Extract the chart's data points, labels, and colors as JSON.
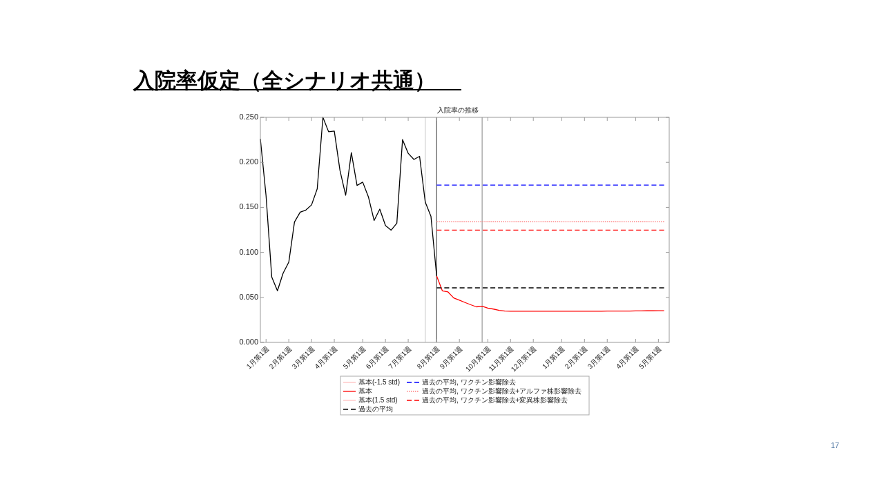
{
  "chart_data": {
    "type": "line",
    "title": "入院率仮定（全シナリオ共通）",
    "subtitle": "入院率の推移",
    "categories": [
      null,
      "1月第1週",
      null,
      null,
      null,
      "2月第1週",
      null,
      null,
      null,
      "3月第1週",
      null,
      null,
      null,
      "4月第1週",
      null,
      null,
      null,
      null,
      "5月第1週",
      null,
      null,
      null,
      "6月第1週",
      null,
      null,
      null,
      "7月第1週",
      null,
      null,
      null,
      null,
      "8月第1週",
      null,
      null,
      null,
      "9月第1週",
      null,
      null,
      null,
      null,
      "10月第1週",
      null,
      null,
      null,
      "11月第1週",
      null,
      null,
      null,
      "12月第1週",
      null,
      null,
      null,
      null,
      "1月第1週",
      null,
      null,
      null,
      "2月第1週",
      null,
      null,
      null,
      "3月第1週",
      null,
      null,
      null,
      null,
      "4月第1週",
      null,
      null,
      null,
      "5月第1週",
      null
    ],
    "ylim": [
      0,
      0.25
    ],
    "yticks": [
      {
        "value": 0,
        "label": "0.000"
      },
      {
        "value": 0.05,
        "label": "0.050"
      },
      {
        "value": 0.1,
        "label": "0.100"
      },
      {
        "value": 0.15,
        "label": "0.150"
      },
      {
        "value": 0.2,
        "label": "0.200"
      },
      {
        "value": 0.25,
        "label": "0.250"
      }
    ],
    "grid": false,
    "legend": "bottom",
    "series": [
      {
        "name": "基本(-1.5 std)",
        "color": "#ffc0c0",
        "line_style": "solid",
        "values": [
          null,
          null,
          null,
          null,
          null,
          null,
          null,
          null,
          null,
          null,
          null,
          null,
          null,
          null,
          null,
          null,
          null,
          null,
          null,
          null,
          null,
          null,
          null,
          null,
          null,
          null,
          null,
          null,
          null,
          null,
          null,
          null,
          null,
          null,
          null,
          null,
          null,
          null,
          null,
          null,
          null,
          null,
          null,
          null,
          null,
          null,
          null,
          null,
          null,
          null,
          null,
          null,
          null,
          null,
          null,
          null,
          null,
          null,
          null,
          null,
          null,
          null,
          null,
          null,
          null,
          null,
          null,
          null,
          null,
          null,
          null,
          null
        ]
      },
      {
        "name": "基本",
        "color": "#ff0000",
        "line_style": "solid",
        "values": [
          null,
          null,
          null,
          null,
          null,
          null,
          null,
          null,
          null,
          null,
          null,
          null,
          null,
          null,
          null,
          null,
          null,
          null,
          null,
          null,
          null,
          null,
          null,
          null,
          null,
          null,
          null,
          null,
          null,
          null,
          null,
          0.0738,
          0.0573,
          0.056,
          0.0494,
          0.0468,
          0.0443,
          0.0418,
          0.0395,
          0.0402,
          0.038,
          0.037,
          0.0355,
          0.0348,
          0.0346,
          0.0346,
          0.0346,
          0.0346,
          0.0346,
          0.0346,
          0.0346,
          0.0346,
          0.0346,
          0.0346,
          0.0346,
          0.0346,
          0.0346,
          0.0346,
          0.0346,
          0.0346,
          0.0346,
          0.0348,
          0.0348,
          0.0348,
          0.0348,
          0.0348,
          0.035,
          0.035,
          0.0351,
          0.0351,
          0.0352,
          0.0352
        ]
      },
      {
        "name": "基本(1.5 std)",
        "color": "#ffc0c0",
        "line_style": "solid",
        "values": [
          null,
          null,
          null,
          null,
          null,
          null,
          null,
          null,
          null,
          null,
          null,
          null,
          null,
          null,
          null,
          null,
          null,
          null,
          null,
          null,
          null,
          null,
          null,
          null,
          null,
          null,
          null,
          null,
          null,
          null,
          null,
          null,
          null,
          null,
          null,
          null,
          null,
          null,
          null,
          null,
          null,
          null,
          null,
          null,
          null,
          null,
          null,
          null,
          null,
          null,
          null,
          null,
          null,
          null,
          null,
          null,
          null,
          null,
          null,
          null,
          null,
          null,
          null,
          null,
          null,
          null,
          null,
          null,
          null,
          null,
          null,
          null
        ]
      },
      {
        "name": "過去の平均",
        "color": "#000000",
        "line_style": "dashed",
        "values": [
          null,
          null,
          null,
          null,
          null,
          null,
          null,
          null,
          null,
          null,
          null,
          null,
          null,
          null,
          null,
          null,
          null,
          null,
          null,
          null,
          null,
          null,
          null,
          null,
          null,
          null,
          null,
          null,
          null,
          null,
          null,
          0.0606,
          0.0606,
          0.0606,
          0.0606,
          0.0606,
          0.0606,
          0.0606,
          0.0606,
          0.0606,
          0.0606,
          0.0606,
          0.0606,
          0.0606,
          0.0606,
          0.0606,
          0.0606,
          0.0606,
          0.0606,
          0.0606,
          0.0606,
          0.0606,
          0.0606,
          0.0606,
          0.0606,
          0.0606,
          0.0606,
          0.0606,
          0.0606,
          0.0606,
          0.0606,
          0.0606,
          0.0606,
          0.0606,
          0.0606,
          0.0606,
          0.0606,
          0.0606,
          0.0606,
          0.0606,
          0.0606,
          0.0606
        ]
      },
      {
        "name": "過去の平均, ワクチン影響除去",
        "color": "#0000ff",
        "line_style": "dashed",
        "values": [
          null,
          null,
          null,
          null,
          null,
          null,
          null,
          null,
          null,
          null,
          null,
          null,
          null,
          null,
          null,
          null,
          null,
          null,
          null,
          null,
          null,
          null,
          null,
          null,
          null,
          null,
          null,
          null,
          null,
          null,
          null,
          0.1747,
          0.1747,
          0.1747,
          0.1747,
          0.1747,
          0.1747,
          0.1747,
          0.1747,
          0.1747,
          0.1747,
          0.1747,
          0.1747,
          0.1747,
          0.1747,
          0.1747,
          0.1747,
          0.1747,
          0.1747,
          0.1747,
          0.1747,
          0.1747,
          0.1747,
          0.1747,
          0.1747,
          0.1747,
          0.1747,
          0.1747,
          0.1747,
          0.1747,
          0.1747,
          0.1747,
          0.1747,
          0.1747,
          0.1747,
          0.1747,
          0.1747,
          0.1747,
          0.1747,
          0.1747,
          0.1747,
          0.1747
        ]
      },
      {
        "name": "過去の平均, ワクチン影響除去+アルファ株影響除去",
        "color": "#ff8080",
        "line_style": "dotted",
        "values": [
          null,
          null,
          null,
          null,
          null,
          null,
          null,
          null,
          null,
          null,
          null,
          null,
          null,
          null,
          null,
          null,
          null,
          null,
          null,
          null,
          null,
          null,
          null,
          null,
          null,
          null,
          null,
          null,
          null,
          null,
          null,
          0.134,
          0.134,
          0.134,
          0.134,
          0.134,
          0.134,
          0.134,
          0.134,
          0.134,
          0.134,
          0.134,
          0.134,
          0.134,
          0.134,
          0.134,
          0.134,
          0.134,
          0.134,
          0.134,
          0.134,
          0.134,
          0.134,
          0.134,
          0.134,
          0.134,
          0.134,
          0.134,
          0.134,
          0.134,
          0.134,
          0.134,
          0.134,
          0.134,
          0.134,
          0.134,
          0.134,
          0.134,
          0.134,
          0.134,
          0.134,
          0.134
        ]
      },
      {
        "name": "過去の平均, ワクチン影響除去+変異株影響除去",
        "color": "#ff0000",
        "line_style": "dashed",
        "values": [
          null,
          null,
          null,
          null,
          null,
          null,
          null,
          null,
          null,
          null,
          null,
          null,
          null,
          null,
          null,
          null,
          null,
          null,
          null,
          null,
          null,
          null,
          null,
          null,
          null,
          null,
          null,
          null,
          null,
          null,
          null,
          0.1247,
          0.1247,
          0.1247,
          0.1247,
          0.1247,
          0.1247,
          0.1247,
          0.1247,
          0.1247,
          0.1247,
          0.1247,
          0.1247,
          0.1247,
          0.1247,
          0.1247,
          0.1247,
          0.1247,
          0.1247,
          0.1247,
          0.1247,
          0.1247,
          0.1247,
          0.1247,
          0.1247,
          0.1247,
          0.1247,
          0.1247,
          0.1247,
          0.1247,
          0.1247,
          0.1247,
          0.1247,
          0.1247,
          0.1247,
          0.1247,
          0.1247,
          0.1247,
          0.1247,
          0.1247,
          0.1247,
          0.1247
        ]
      },
      {
        "color": "#000000",
        "line_style": "solid",
        "values": [
          0.226,
          0.163,
          0.0726,
          0.0573,
          0.0769,
          0.0891,
          0.1337,
          0.1446,
          0.147,
          0.1527,
          0.1706,
          0.25,
          0.234,
          0.2347,
          0.191,
          0.1634,
          0.2108,
          0.1744,
          0.178,
          0.1617,
          0.1354,
          0.148,
          0.1298,
          0.1247,
          0.1324,
          0.2253,
          0.21,
          0.2032,
          0.2067,
          0.1558,
          0.14,
          0.0738,
          null,
          null,
          null,
          null,
          null,
          null,
          null,
          null,
          null,
          null,
          null,
          null,
          null,
          null,
          null,
          null,
          null,
          null,
          null,
          null,
          null,
          null,
          null,
          null,
          null,
          null,
          null,
          null,
          null,
          null,
          null,
          null,
          null,
          null,
          null,
          null,
          null,
          null,
          null,
          null
        ]
      }
    ],
    "ref_lines": [
      {
        "axis": "x",
        "value": "8月第1週",
        "color": "#555555"
      }
    ],
    "annotations": [
      "17"
    ]
  }
}
